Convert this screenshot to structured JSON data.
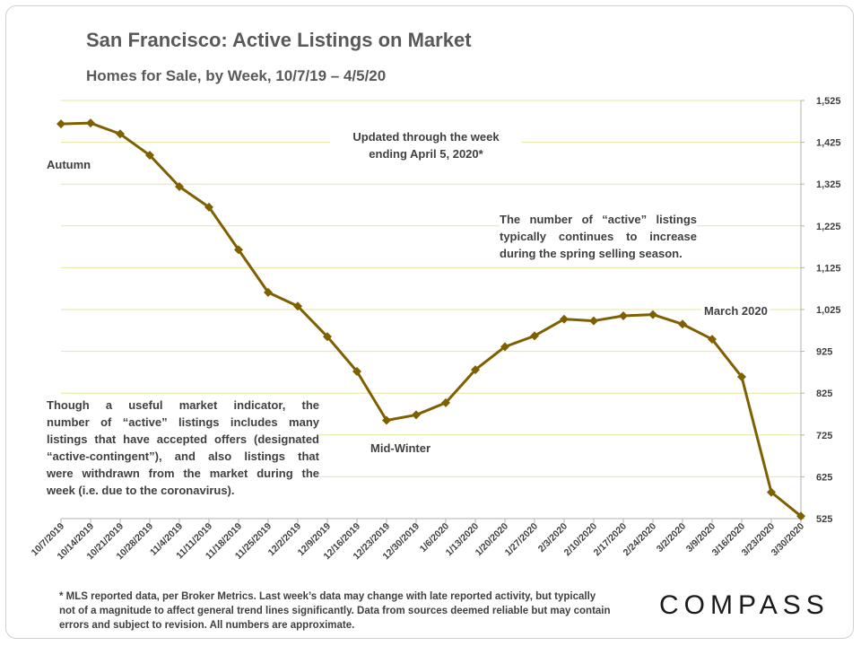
{
  "header": {
    "title": "San Francisco: Active Listings on Market",
    "subtitle": "Homes for Sale, by Week, 10/7/19 – 4/5/20"
  },
  "annotations": {
    "autumn": "Autumn",
    "updated_line1": "Updated through the week",
    "updated_line2": "ending April 5, 2020*",
    "spring_line1": "The number of “active” listings",
    "spring_line2": "typically continues to increase",
    "spring_line3": "during the spring selling season.",
    "march": "March 2020",
    "midwinter": "Mid-Winter",
    "note_line1": "Though a useful market indicator, the",
    "note_line2": "number of “active” listings includes many",
    "note_line3": "listings that have accepted offers (designated",
    "note_line4": "“active-contingent”), and also listings that",
    "note_line5": "were withdrawn from the market during the",
    "note_line6": "week (i.e. due to the coronavirus)."
  },
  "footer": {
    "line1": "* MLS reported data, per Broker Metrics. Last week’s data may change with late reported activity, but typically",
    "line2": "not of a magnitude to affect general trend lines significantly. Data from sources deemed reliable but may contain",
    "line3": "errors and subject to revision. All numbers are approximate."
  },
  "logo": {
    "text": "COMPASS"
  },
  "colors": {
    "line": "#7f6000",
    "grid": "#e6e6a0",
    "axis_text": "#404040"
  },
  "chart_data": {
    "type": "line",
    "title": "San Francisco: Active Listings on Market",
    "subtitle": "Homes for Sale, by Week, 10/7/19 – 4/5/20",
    "x": [
      "10/7/2019",
      "10/14/2019",
      "10/21/2019",
      "10/28/2019",
      "11/4/2019",
      "11/11/2019",
      "11/18/2019",
      "11/25/2019",
      "12/2/2019",
      "12/9/2019",
      "12/16/2019",
      "12/23/2019",
      "12/30/2019",
      "1/6/2020",
      "1/13/2020",
      "1/20/2020",
      "1/27/2020",
      "2/3/2020",
      "2/10/2020",
      "2/17/2020",
      "2/24/2020",
      "3/2/2020",
      "3/9/2020",
      "3/16/2020",
      "3/23/2020",
      "3/30/2020"
    ],
    "series": [
      {
        "values": [
          1469,
          1471,
          1445,
          1394,
          1319,
          1270,
          1168,
          1066,
          1033,
          960,
          877,
          760,
          773,
          802,
          881,
          936,
          962,
          1002,
          998,
          1010,
          1013,
          990,
          954,
          864,
          588,
          531
        ]
      }
    ],
    "y_ticks": [
      "1,525",
      "1,425",
      "1,325",
      "1,225",
      "1,125",
      "1,025",
      "925",
      "825",
      "725",
      "625",
      "525"
    ],
    "ylim": [
      525,
      1525
    ],
    "y_axis_side": "right",
    "grid": true,
    "marker": "diamond"
  }
}
